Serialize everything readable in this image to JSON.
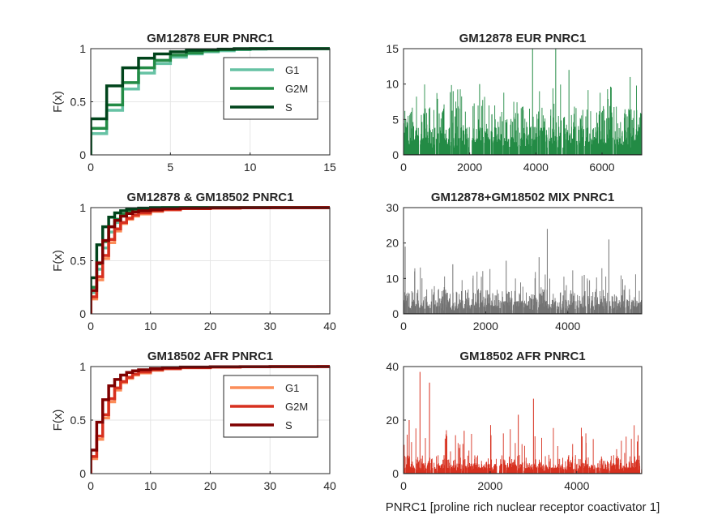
{
  "figure": {
    "xlabel_bottom": "PNRC1 [proline rich nuclear receptor coactivator 1]"
  },
  "chart_data": [
    {
      "type": "line",
      "subtype": "ecdf-step",
      "title": "GM12878 EUR PNRC1",
      "xlabel": "",
      "ylabel": "F(x)",
      "xlim": [
        0,
        15
      ],
      "ylim": [
        0,
        1
      ],
      "xticks": [
        0,
        5,
        10,
        15
      ],
      "yticks": [
        0,
        0.5,
        1
      ],
      "grid": true,
      "legend": "inside-top-right",
      "series": [
        {
          "name": "G1",
          "color": "#66c2a4",
          "x": [
            0,
            1,
            2,
            3,
            4,
            5,
            6,
            7,
            8,
            9,
            10,
            11,
            12,
            13,
            14,
            15
          ],
          "y": [
            0.2,
            0.42,
            0.62,
            0.77,
            0.86,
            0.92,
            0.95,
            0.97,
            0.98,
            0.99,
            0.995,
            1.0,
            1.0,
            1.0,
            1.0,
            1.0
          ]
        },
        {
          "name": "G2M",
          "color": "#238b45",
          "x": [
            0,
            1,
            2,
            3,
            4,
            5,
            6,
            7,
            8,
            9,
            10,
            11,
            12
          ],
          "y": [
            0.25,
            0.47,
            0.68,
            0.82,
            0.89,
            0.94,
            0.96,
            0.98,
            0.99,
            0.995,
            1.0,
            1.0,
            1.0
          ]
        },
        {
          "name": "S",
          "color": "#00441b",
          "x": [
            0,
            1,
            2,
            3,
            4,
            5,
            6,
            7,
            8,
            9,
            10,
            11
          ],
          "y": [
            0.34,
            0.65,
            0.82,
            0.91,
            0.95,
            0.97,
            0.985,
            0.99,
            0.995,
            1.0,
            1.0,
            1.0
          ]
        }
      ]
    },
    {
      "type": "bar",
      "subtype": "index-spikes",
      "title": "GM12878 EUR PNRC1",
      "xlabel": "",
      "ylabel": "",
      "xlim": [
        0,
        7200
      ],
      "ylim": [
        0,
        15
      ],
      "xticks": [
        0,
        2000,
        4000,
        6000
      ],
      "yticks": [
        0,
        5,
        10,
        15
      ],
      "grid": false,
      "color": "#238b45",
      "n_cells": 7200,
      "value_range": [
        0,
        15
      ],
      "notable_peaks": [
        {
          "x": 3900,
          "y": 15
        },
        {
          "x": 4600,
          "y": 15
        },
        {
          "x": 5000,
          "y": 12
        },
        {
          "x": 6850,
          "y": 11
        },
        {
          "x": 2300,
          "y": 10
        },
        {
          "x": 1500,
          "y": 9
        }
      ]
    },
    {
      "type": "line",
      "subtype": "ecdf-step",
      "title": "GM12878 & GM18502 PNRC1",
      "xlabel": "",
      "ylabel": "F(x)",
      "xlim": [
        0,
        40
      ],
      "ylim": [
        0,
        1
      ],
      "xticks": [
        0,
        10,
        20,
        30,
        40
      ],
      "yticks": [
        0,
        0.5,
        1
      ],
      "grid": true,
      "legend": "none",
      "series": [
        {
          "name": "",
          "color": "#66c2a4",
          "x": [
            0,
            1,
            2,
            3,
            4,
            5,
            6,
            7,
            8,
            10,
            12,
            15
          ],
          "y": [
            0.2,
            0.42,
            0.62,
            0.77,
            0.86,
            0.92,
            0.95,
            0.97,
            0.98,
            0.99,
            0.995,
            1.0
          ]
        },
        {
          "name": "",
          "color": "#238b45",
          "x": [
            0,
            1,
            2,
            3,
            4,
            5,
            6,
            7,
            8,
            10,
            12
          ],
          "y": [
            0.25,
            0.47,
            0.68,
            0.82,
            0.89,
            0.94,
            0.96,
            0.98,
            0.99,
            0.995,
            1.0
          ]
        },
        {
          "name": "",
          "color": "#00441b",
          "x": [
            0,
            1,
            2,
            3,
            4,
            5,
            6,
            7,
            8,
            10,
            11
          ],
          "y": [
            0.34,
            0.65,
            0.82,
            0.91,
            0.95,
            0.97,
            0.985,
            0.99,
            0.995,
            1.0,
            1.0
          ]
        },
        {
          "name": "",
          "color": "#fc8d59",
          "x": [
            0,
            1,
            2,
            3,
            4,
            5,
            6,
            7,
            8,
            10,
            12,
            15,
            20,
            25,
            30,
            38
          ],
          "y": [
            0.14,
            0.32,
            0.52,
            0.67,
            0.78,
            0.85,
            0.89,
            0.92,
            0.94,
            0.965,
            0.98,
            0.99,
            0.995,
            0.998,
            0.999,
            1.0
          ]
        },
        {
          "name": "",
          "color": "#d7301f",
          "x": [
            0,
            1,
            2,
            3,
            4,
            5,
            6,
            7,
            8,
            10,
            12,
            15,
            20,
            25,
            30,
            38
          ],
          "y": [
            0.16,
            0.35,
            0.55,
            0.7,
            0.8,
            0.86,
            0.9,
            0.93,
            0.95,
            0.97,
            0.98,
            0.99,
            0.995,
            0.998,
            0.999,
            1.0
          ]
        },
        {
          "name": "",
          "color": "#7f0000",
          "x": [
            0,
            1,
            2,
            3,
            4,
            5,
            6,
            7,
            8,
            10,
            12,
            15,
            20,
            25,
            30,
            38
          ],
          "y": [
            0.22,
            0.48,
            0.69,
            0.82,
            0.88,
            0.92,
            0.945,
            0.96,
            0.97,
            0.98,
            0.99,
            0.995,
            0.998,
            0.999,
            1.0,
            1.0
          ]
        }
      ]
    },
    {
      "type": "bar",
      "subtype": "index-spikes",
      "title": "GM12878+GM18502 MIX PNRC1",
      "xlabel": "",
      "ylabel": "",
      "xlim": [
        0,
        5800
      ],
      "ylim": [
        0,
        30
      ],
      "xticks": [
        0,
        2000,
        4000
      ],
      "yticks": [
        0,
        10,
        20,
        30
      ],
      "grid": false,
      "color": "#737373",
      "n_cells": 5800,
      "value_range": [
        0,
        24
      ],
      "notable_peaks": [
        {
          "x": 3500,
          "y": 24
        },
        {
          "x": 5000,
          "y": 21
        },
        {
          "x": 40,
          "y": 19
        },
        {
          "x": 3300,
          "y": 16
        },
        {
          "x": 2500,
          "y": 15
        },
        {
          "x": 1200,
          "y": 14
        },
        {
          "x": 270,
          "y": 12
        },
        {
          "x": 4400,
          "y": 11
        }
      ]
    },
    {
      "type": "line",
      "subtype": "ecdf-step",
      "title": "GM18502 AFR PNRC1",
      "xlabel": "",
      "ylabel": "F(x)",
      "xlim": [
        0,
        40
      ],
      "ylim": [
        0,
        1
      ],
      "xticks": [
        0,
        10,
        20,
        30,
        40
      ],
      "yticks": [
        0,
        0.5,
        1
      ],
      "grid": true,
      "legend": "inside-top-right",
      "series": [
        {
          "name": "G1",
          "color": "#fc8d59",
          "x": [
            0,
            1,
            2,
            3,
            4,
            5,
            6,
            7,
            8,
            10,
            12,
            15,
            20,
            25,
            30,
            38
          ],
          "y": [
            0.14,
            0.32,
            0.52,
            0.67,
            0.78,
            0.85,
            0.89,
            0.92,
            0.94,
            0.965,
            0.98,
            0.99,
            0.995,
            0.998,
            0.999,
            1.0
          ]
        },
        {
          "name": "G2M",
          "color": "#d7301f",
          "x": [
            0,
            1,
            2,
            3,
            4,
            5,
            6,
            7,
            8,
            10,
            12,
            15,
            20,
            25,
            30,
            38
          ],
          "y": [
            0.16,
            0.35,
            0.55,
            0.7,
            0.8,
            0.86,
            0.9,
            0.93,
            0.95,
            0.97,
            0.98,
            0.99,
            0.995,
            0.998,
            0.999,
            1.0
          ]
        },
        {
          "name": "S",
          "color": "#7f0000",
          "x": [
            0,
            1,
            2,
            3,
            4,
            5,
            6,
            7,
            8,
            10,
            12,
            15,
            20,
            25,
            30,
            38
          ],
          "y": [
            0.22,
            0.48,
            0.69,
            0.82,
            0.88,
            0.92,
            0.945,
            0.96,
            0.97,
            0.98,
            0.99,
            0.995,
            0.998,
            0.999,
            1.0,
            1.0
          ]
        }
      ]
    },
    {
      "type": "bar",
      "subtype": "index-spikes",
      "title": "GM18502 AFR PNRC1",
      "xlabel": "PNRC1 [proline rich nuclear receptor coactivator 1]",
      "ylabel": "",
      "xlim": [
        0,
        5500
      ],
      "ylim": [
        0,
        40
      ],
      "xticks": [
        0,
        2000,
        4000
      ],
      "yticks": [
        0,
        20,
        40
      ],
      "grid": false,
      "color": "#d7301f",
      "n_cells": 5500,
      "value_range": [
        0,
        38
      ],
      "notable_peaks": [
        {
          "x": 380,
          "y": 38
        },
        {
          "x": 600,
          "y": 34
        },
        {
          "x": 3000,
          "y": 28
        },
        {
          "x": 2650,
          "y": 22
        },
        {
          "x": 130,
          "y": 20
        },
        {
          "x": 1400,
          "y": 16
        },
        {
          "x": 1000,
          "y": 14
        },
        {
          "x": 5400,
          "y": 12
        }
      ]
    }
  ]
}
